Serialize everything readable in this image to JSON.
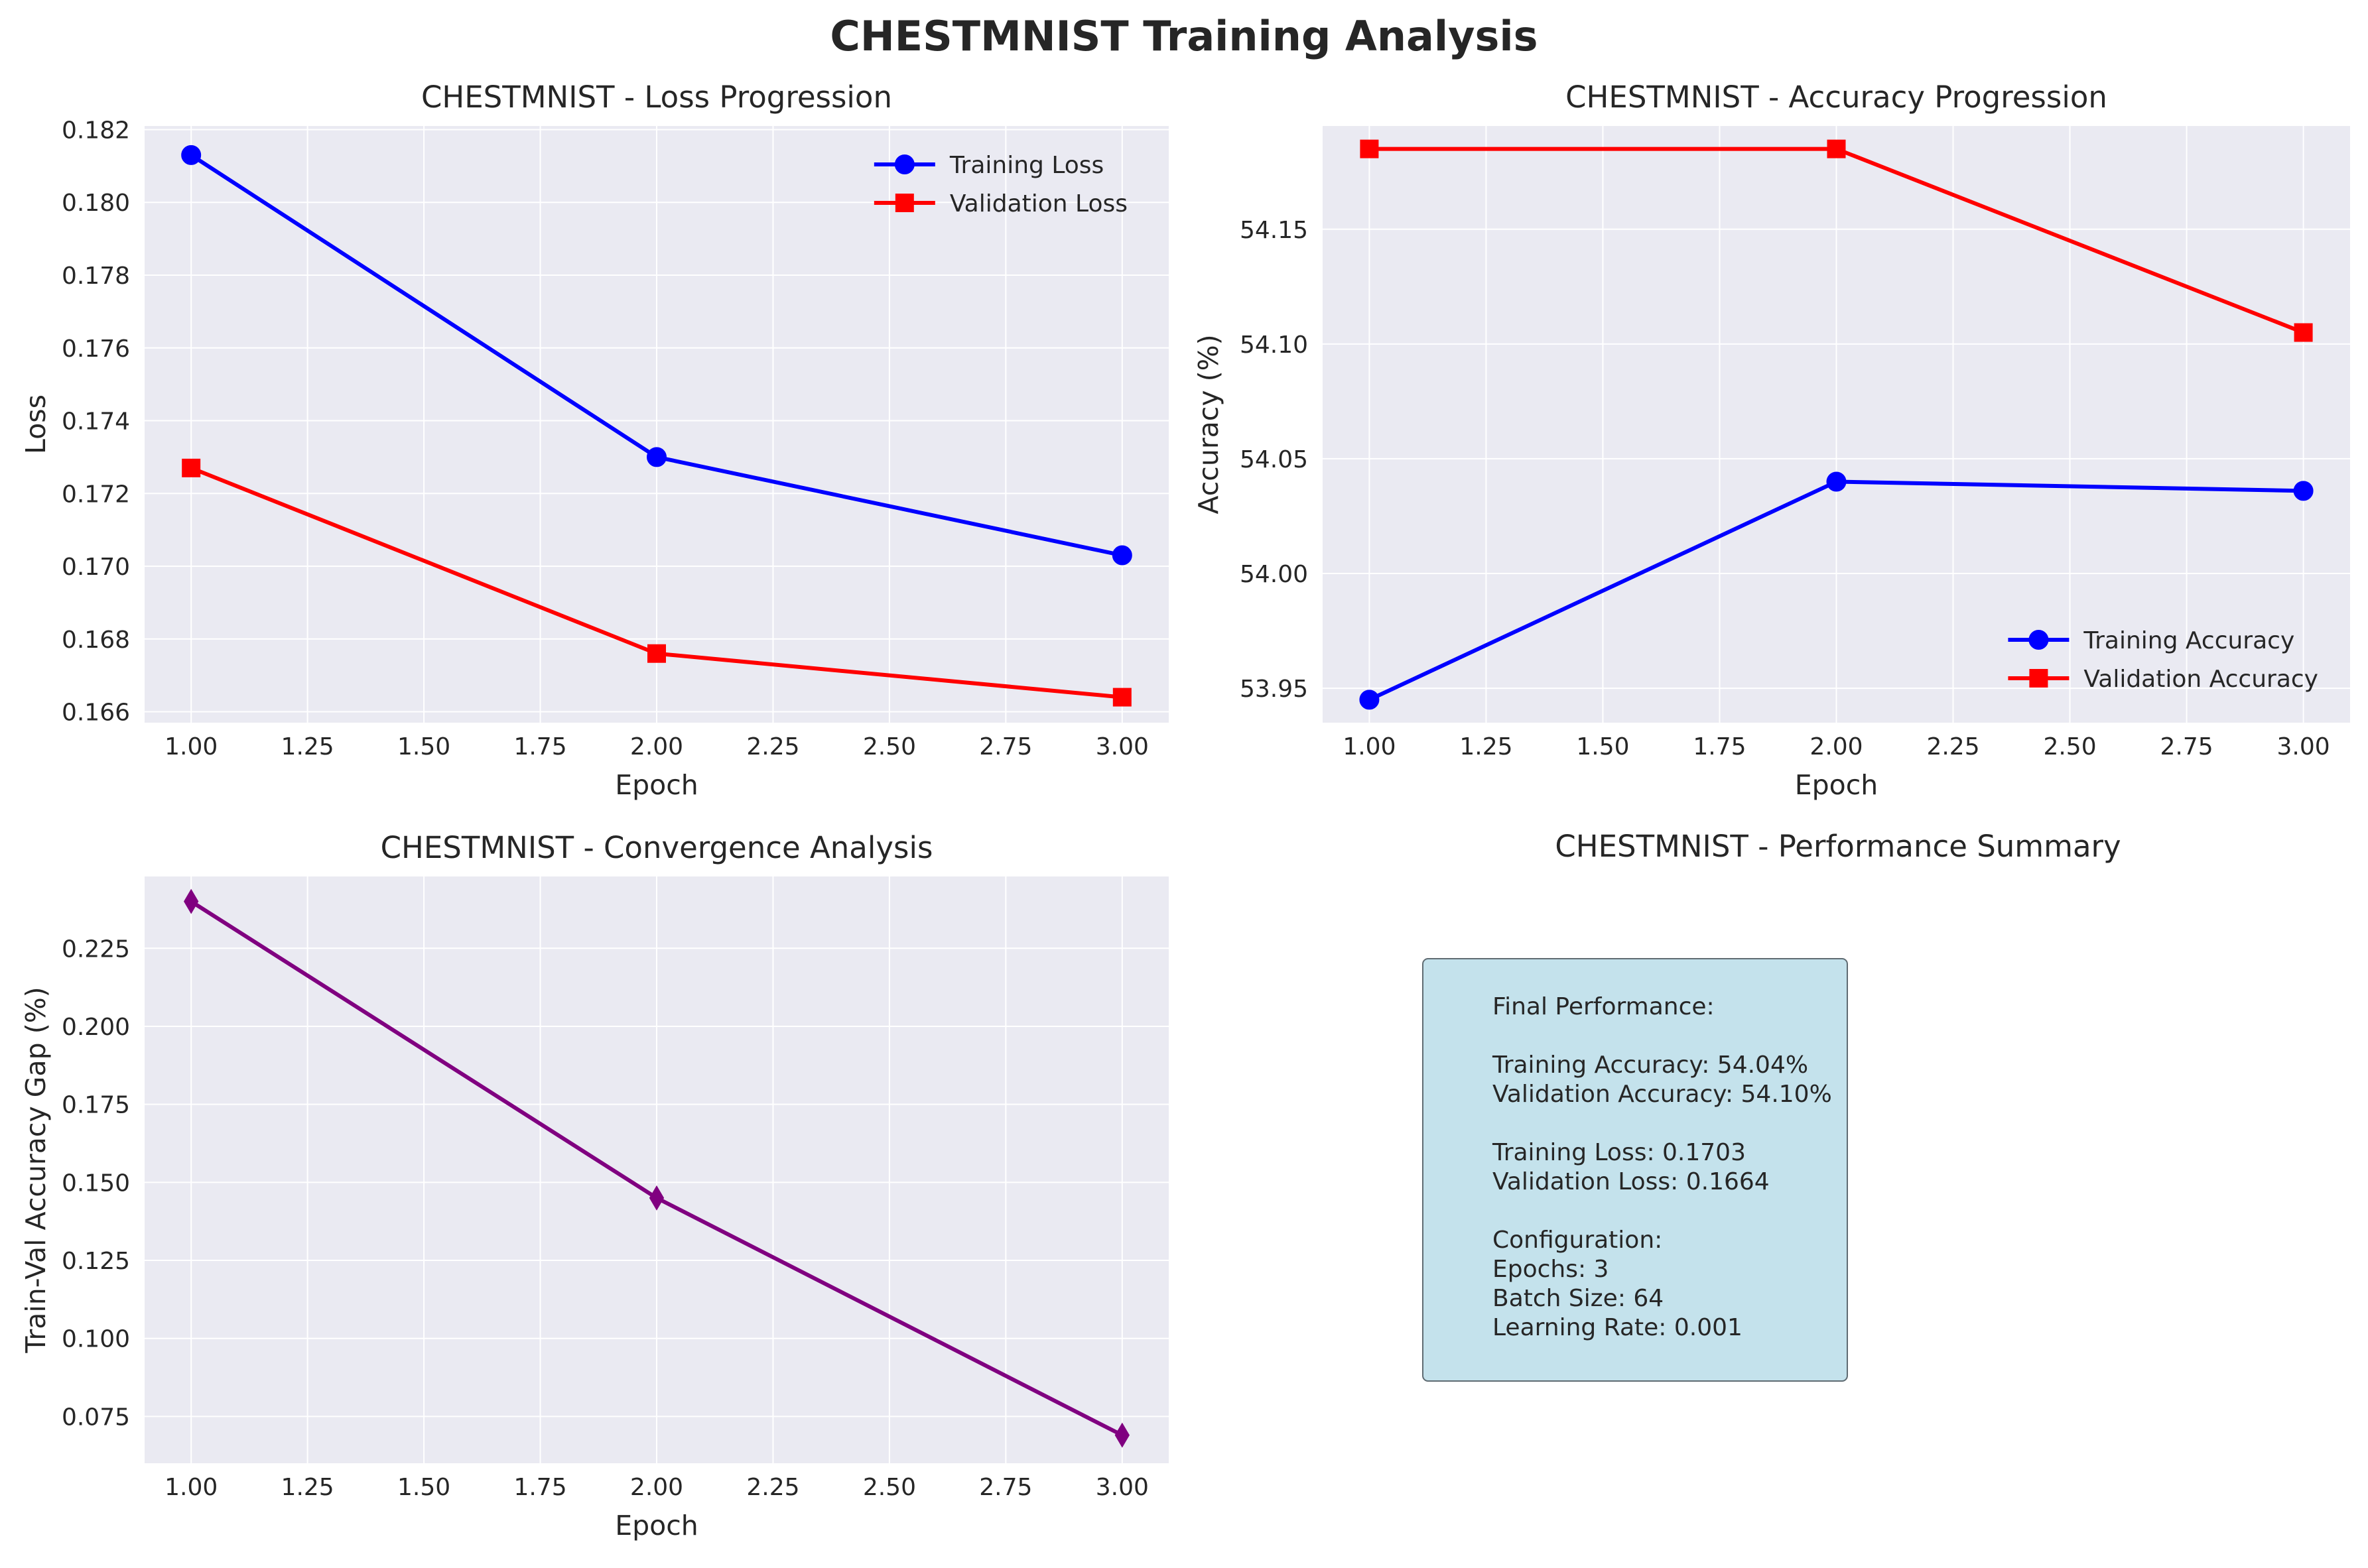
{
  "suptitle": "CHESTMNIST Training Analysis",
  "colors": {
    "axes_bg": "#eaeaf2",
    "grid": "#ffffff",
    "training": "#0000ff",
    "validation": "#ff0000",
    "gap": "#800080",
    "summary_box": "#c4e2ec"
  },
  "chart_data": [
    {
      "id": "loss",
      "type": "line",
      "title": "CHESTMNIST - Loss Progression",
      "xlabel": "Epoch",
      "ylabel": "Loss",
      "xlim": [
        0.9,
        3.1
      ],
      "ylim": [
        0.1657,
        0.1821
      ],
      "xticks": [
        1.0,
        1.25,
        1.5,
        1.75,
        2.0,
        2.25,
        2.5,
        2.75,
        3.0
      ],
      "xtick_labels": [
        "1.00",
        "1.25",
        "1.50",
        "1.75",
        "2.00",
        "2.25",
        "2.50",
        "2.75",
        "3.00"
      ],
      "yticks": [
        0.166,
        0.168,
        0.17,
        0.172,
        0.174,
        0.176,
        0.178,
        0.18,
        0.182
      ],
      "ytick_labels": [
        "0.166",
        "0.168",
        "0.170",
        "0.172",
        "0.174",
        "0.176",
        "0.178",
        "0.180",
        "0.182"
      ],
      "grid": true,
      "legend_position": "top-right",
      "series": [
        {
          "name": "Training Loss",
          "color": "#0000ff",
          "marker": "circle",
          "x": [
            1,
            2,
            3
          ],
          "y": [
            0.1813,
            0.173,
            0.1703
          ]
        },
        {
          "name": "Validation Loss",
          "color": "#ff0000",
          "marker": "square",
          "x": [
            1,
            2,
            3
          ],
          "y": [
            0.1727,
            0.1676,
            0.1664
          ]
        }
      ]
    },
    {
      "id": "accuracy",
      "type": "line",
      "title": "CHESTMNIST - Accuracy Progression",
      "xlabel": "Epoch",
      "ylabel": "Accuracy (%)",
      "xlim": [
        0.9,
        3.1
      ],
      "ylim": [
        53.935,
        54.195
      ],
      "xticks": [
        1.0,
        1.25,
        1.5,
        1.75,
        2.0,
        2.25,
        2.5,
        2.75,
        3.0
      ],
      "xtick_labels": [
        "1.00",
        "1.25",
        "1.50",
        "1.75",
        "2.00",
        "2.25",
        "2.50",
        "2.75",
        "3.00"
      ],
      "yticks": [
        53.95,
        54.0,
        54.05,
        54.1,
        54.15
      ],
      "ytick_labels": [
        "53.95",
        "54.00",
        "54.05",
        "54.10",
        "54.15"
      ],
      "grid": true,
      "legend_position": "bottom-right",
      "series": [
        {
          "name": "Training Accuracy",
          "color": "#0000ff",
          "marker": "circle",
          "x": [
            1,
            2,
            3
          ],
          "y": [
            53.945,
            54.04,
            54.036
          ]
        },
        {
          "name": "Validation Accuracy",
          "color": "#ff0000",
          "marker": "square",
          "x": [
            1,
            2,
            3
          ],
          "y": [
            54.185,
            54.185,
            54.105
          ]
        }
      ]
    },
    {
      "id": "gap",
      "type": "line",
      "title": "CHESTMNIST - Convergence Analysis",
      "xlabel": "Epoch",
      "ylabel": "Train-Val Accuracy Gap (%)",
      "xlim": [
        0.9,
        3.1
      ],
      "ylim": [
        0.06,
        0.248
      ],
      "xticks": [
        1.0,
        1.25,
        1.5,
        1.75,
        2.0,
        2.25,
        2.5,
        2.75,
        3.0
      ],
      "xtick_labels": [
        "1.00",
        "1.25",
        "1.50",
        "1.75",
        "2.00",
        "2.25",
        "2.50",
        "2.75",
        "3.00"
      ],
      "yticks": [
        0.075,
        0.1,
        0.125,
        0.15,
        0.175,
        0.2,
        0.225
      ],
      "ytick_labels": [
        "0.075",
        "0.100",
        "0.125",
        "0.150",
        "0.175",
        "0.200",
        "0.225"
      ],
      "grid": true,
      "legend_position": "none",
      "series": [
        {
          "color": "#800080",
          "marker": "diamond",
          "x": [
            1,
            2,
            3
          ],
          "y": [
            0.24,
            0.145,
            0.069
          ]
        }
      ]
    }
  ],
  "summary": {
    "title": "CHESTMNIST - Performance Summary",
    "lines": [
      "Final Performance:",
      "",
      "Training Accuracy: 54.04%",
      "Validation Accuracy: 54.10%",
      "",
      "Training Loss: 0.1703",
      "Validation Loss: 0.1664",
      "",
      "Configuration:",
      "Epochs: 3",
      "Batch Size: 64",
      "Learning Rate: 0.001"
    ]
  }
}
